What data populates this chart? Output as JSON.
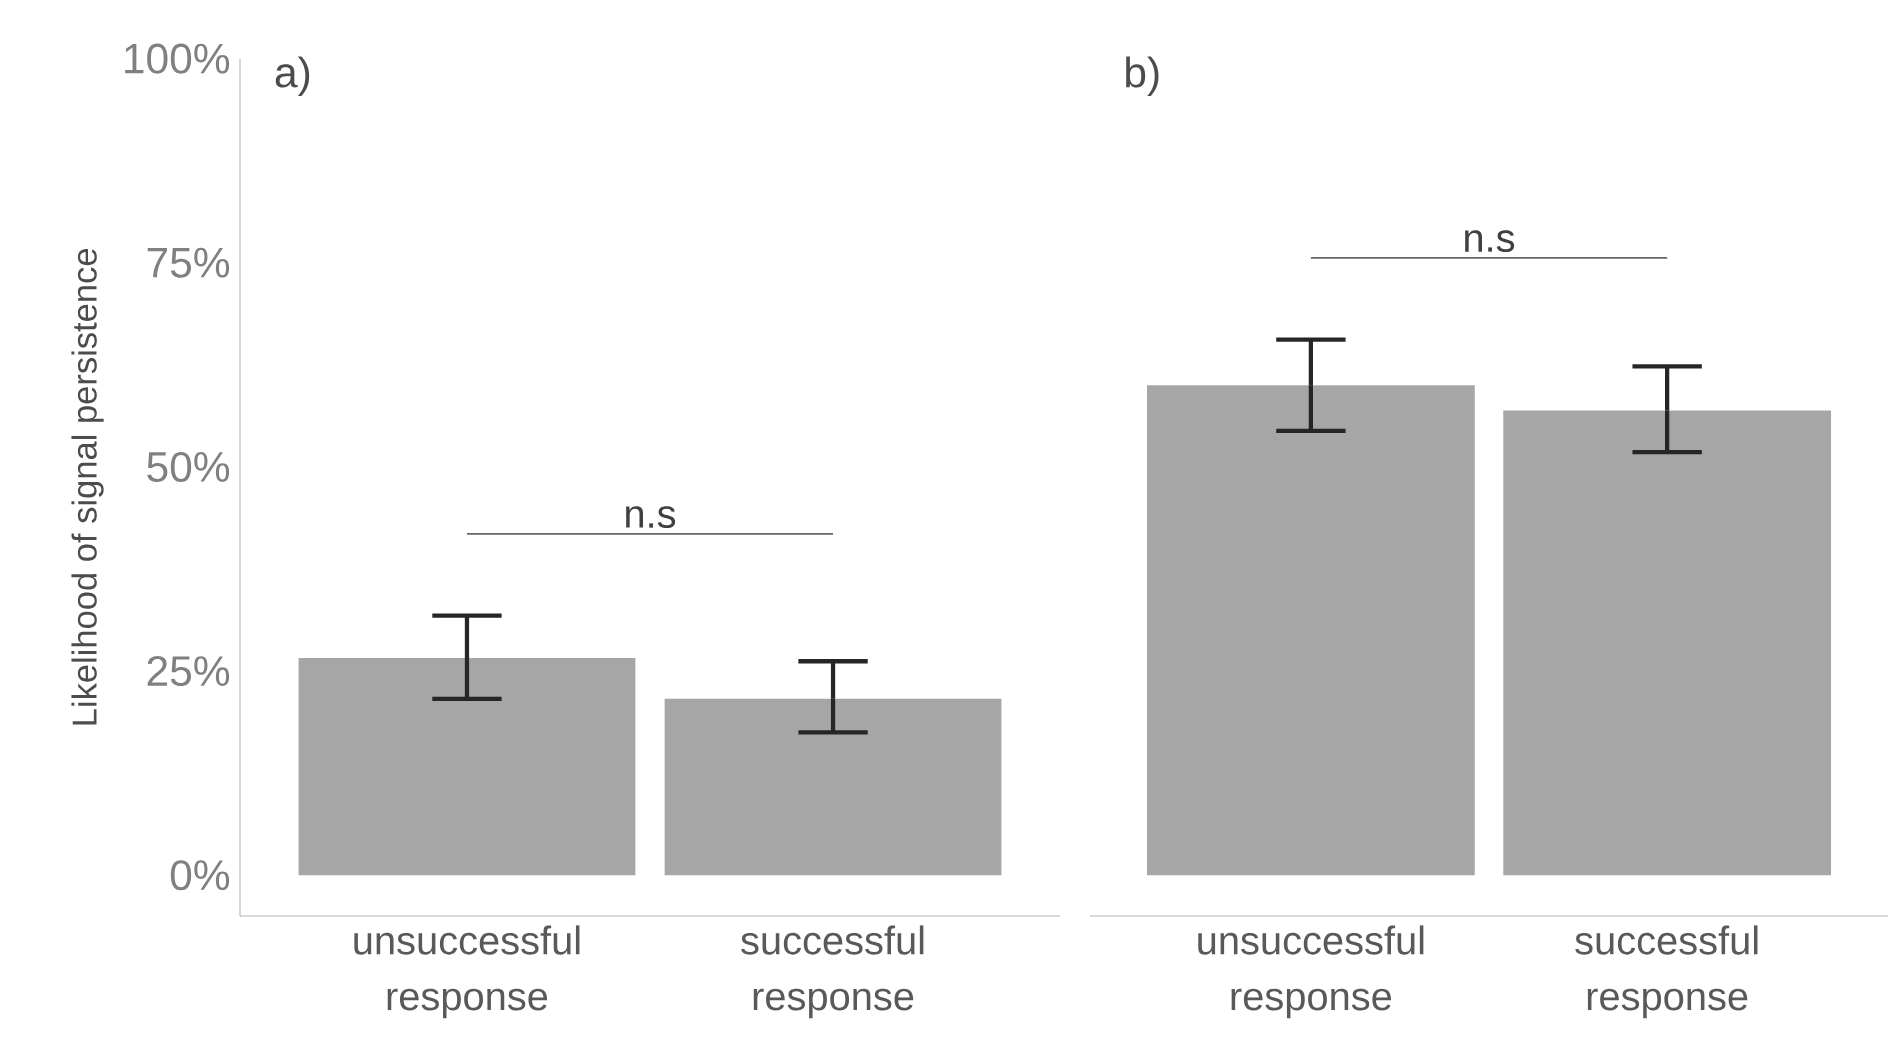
{
  "chart_data": [
    {
      "type": "bar",
      "title": "a)",
      "ylabel": "Likelihood of signal persistence",
      "categories": [
        "unsuccessful response",
        "successful response"
      ],
      "values": [
        26.6,
        21.6
      ],
      "errors": [
        [
          21.6,
          31.8
        ],
        [
          17.5,
          26.2
        ]
      ],
      "color": "#a6a6a6",
      "ylim": [
        -5,
        100
      ],
      "yticks": [
        {
          "value": 0,
          "label": "0%"
        },
        {
          "value": 25,
          "label": "25%"
        },
        {
          "value": 50,
          "label": "50%"
        },
        {
          "value": 75,
          "label": "75%"
        },
        {
          "value": 100,
          "label": "100%"
        }
      ],
      "annotations": [
        "n.s"
      ]
    },
    {
      "type": "bar",
      "title": "b)",
      "categories": [
        "unsuccessful response",
        "successful response"
      ],
      "values": [
        60.0,
        56.9
      ],
      "errors": [
        [
          54.4,
          65.6
        ],
        [
          51.8,
          62.3
        ]
      ],
      "color": "#a6a6a6",
      "ylim": [
        -5,
        100
      ],
      "tick_labels": "x",
      "annotations": [
        "n.s"
      ]
    }
  ]
}
